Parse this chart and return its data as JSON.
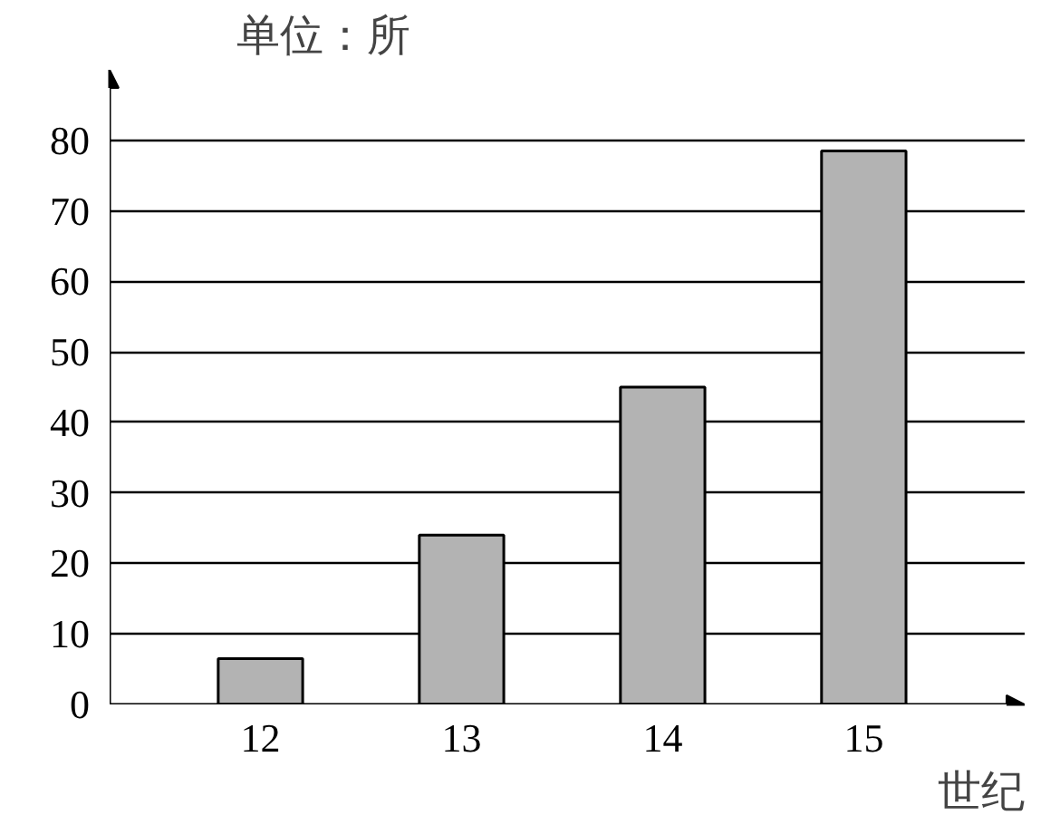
{
  "chart_data": {
    "type": "bar",
    "xlabel": "世纪",
    "ylabel": "单位：所",
    "categories": [
      "12",
      "13",
      "14",
      "15"
    ],
    "values": [
      6.5,
      24,
      45,
      78.5
    ],
    "color": "#b3b3b3",
    "ylim": [
      0,
      90
    ],
    "yticks": [
      0,
      10,
      20,
      30,
      40,
      50,
      60,
      70,
      80
    ],
    "grid": "y"
  }
}
